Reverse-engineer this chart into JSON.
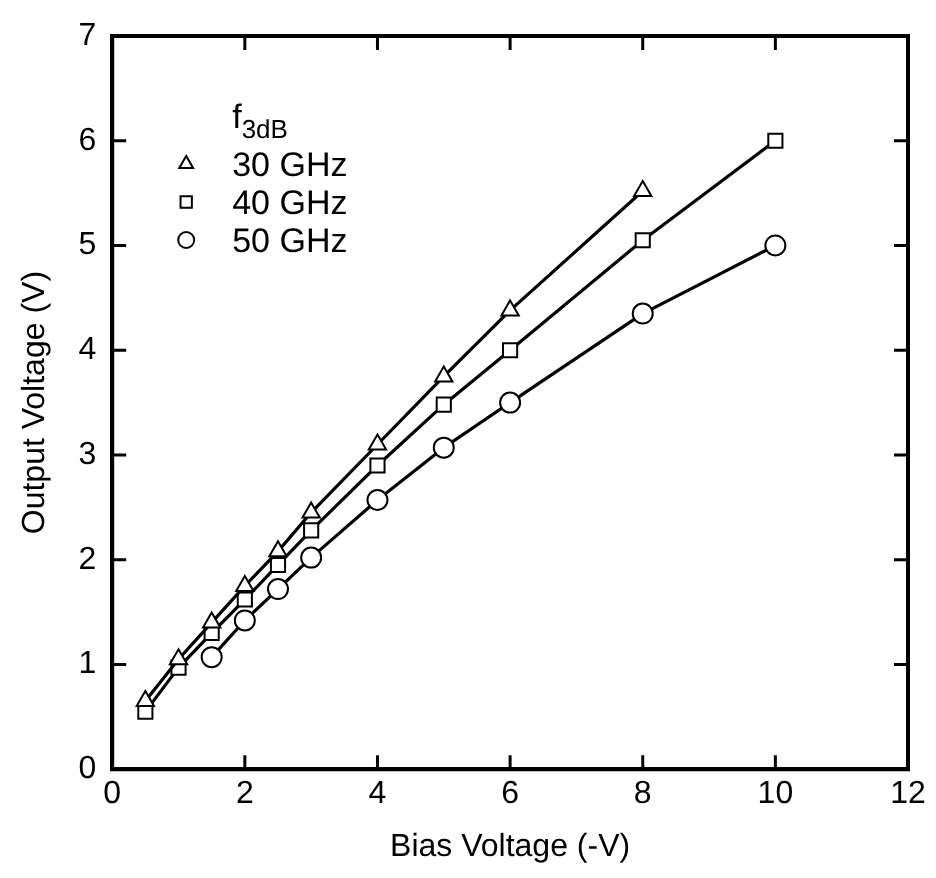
{
  "chart_data": {
    "type": "line",
    "xlabel": "Bias Voltage (-V)",
    "ylabel": "Output Voltage (V)",
    "legend_title": "f$_{3dB}$",
    "xlim": [
      0,
      12
    ],
    "xticks": [
      0,
      2,
      4,
      6,
      8,
      10,
      12
    ],
    "ylim": [
      0,
      7
    ],
    "yticks": [
      0,
      1,
      2,
      3,
      4,
      5,
      6,
      7
    ],
    "grid": false,
    "legend": "top left",
    "line_style": "solid",
    "series": [
      {
        "name": "30 GHz",
        "color": "#000000",
        "marker": "triangle",
        "x": [
          0.5,
          1,
          1.5,
          2,
          2.5,
          3,
          4,
          5,
          6,
          8
        ],
        "values": [
          0.65,
          1.05,
          1.4,
          1.75,
          2.08,
          2.45,
          3.1,
          3.75,
          4.38,
          5.52
        ]
      },
      {
        "name": "40 GHz",
        "color": "#000000",
        "marker": "square",
        "x": [
          0.5,
          1,
          1.5,
          2,
          2.5,
          3,
          4,
          5,
          6,
          8,
          10
        ],
        "values": [
          0.55,
          0.97,
          1.3,
          1.62,
          1.95,
          2.28,
          2.9,
          3.48,
          4.0,
          5.05,
          6.0
        ]
      },
      {
        "name": "50 GHz",
        "color": "#000000",
        "marker": "circle",
        "x": [
          1.5,
          2,
          2.5,
          3,
          4,
          5,
          6,
          8,
          10
        ],
        "values": [
          1.07,
          1.42,
          1.72,
          2.02,
          2.57,
          3.07,
          3.5,
          4.35,
          5.0
        ]
      }
    ]
  }
}
